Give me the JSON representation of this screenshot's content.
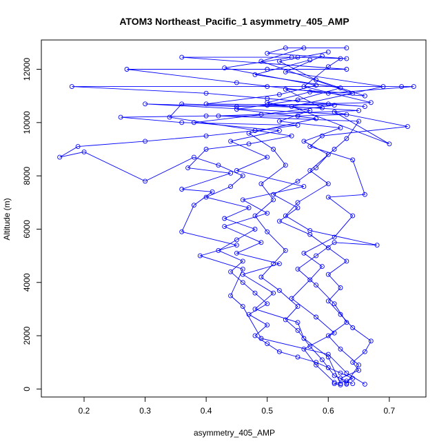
{
  "chart_data": {
    "type": "line",
    "title": "ATOM3 Northeast_Pacific_1 asymmetry_405_AMP",
    "xlabel": "asymmetry_405_AMP",
    "ylabel": "Altitude (m)",
    "xlim": [
      0.13,
      0.76
    ],
    "ylim": [
      -300,
      13100
    ],
    "xticks": [
      0.2,
      0.3,
      0.4,
      0.5,
      0.6,
      0.7
    ],
    "yticks": [
      0,
      2000,
      4000,
      6000,
      8000,
      10000,
      12000
    ],
    "grid": false,
    "legend": "none",
    "series": [
      {
        "color": "#0000ff",
        "marker": "open-circle",
        "points": [
          [
            0.62,
            150
          ],
          [
            0.61,
            200
          ],
          [
            0.63,
            300
          ],
          [
            0.64,
            400
          ],
          [
            0.62,
            600
          ],
          [
            0.6,
            800
          ],
          [
            0.58,
            1000
          ],
          [
            0.55,
            1200
          ],
          [
            0.52,
            1400
          ],
          [
            0.5,
            1700
          ],
          [
            0.48,
            2000
          ],
          [
            0.5,
            2400
          ],
          [
            0.47,
            2800
          ],
          [
            0.5,
            3200
          ],
          [
            0.48,
            3600
          ],
          [
            0.46,
            4000
          ],
          [
            0.44,
            4400
          ],
          [
            0.46,
            4800
          ],
          [
            0.42,
            5200
          ],
          [
            0.45,
            5600
          ],
          [
            0.48,
            6000
          ],
          [
            0.43,
            6400
          ],
          [
            0.47,
            6800
          ],
          [
            0.4,
            7200
          ],
          [
            0.44,
            7600
          ],
          [
            0.46,
            8000
          ],
          [
            0.42,
            8400
          ],
          [
            0.38,
            8700
          ],
          [
            0.3,
            7800
          ],
          [
            0.2,
            8900
          ],
          [
            0.16,
            8700
          ],
          [
            0.19,
            9100
          ],
          [
            0.3,
            9300
          ],
          [
            0.4,
            9500
          ],
          [
            0.48,
            9700
          ],
          [
            0.55,
            9900
          ],
          [
            0.36,
            10000
          ],
          [
            0.26,
            10200
          ],
          [
            0.4,
            10250
          ],
          [
            0.55,
            10250
          ],
          [
            0.63,
            10300
          ],
          [
            0.3,
            10700
          ],
          [
            0.45,
            10600
          ],
          [
            0.6,
            10700
          ],
          [
            0.66,
            10600
          ],
          [
            0.5,
            10900
          ],
          [
            0.4,
            11100
          ],
          [
            0.18,
            11350
          ],
          [
            0.5,
            11350
          ],
          [
            0.72,
            11350
          ],
          [
            0.74,
            11350
          ],
          [
            0.6,
            11100
          ],
          [
            0.45,
            11500
          ],
          [
            0.27,
            12000
          ],
          [
            0.5,
            12000
          ],
          [
            0.63,
            12000
          ],
          [
            0.36,
            12450
          ],
          [
            0.55,
            12450
          ],
          [
            0.63,
            12400
          ],
          [
            0.5,
            12600
          ],
          [
            0.53,
            12800
          ],
          [
            0.63,
            12800
          ]
        ]
      },
      {
        "color": "#0000ff",
        "marker": "open-circle",
        "points": [
          [
            0.63,
            180
          ],
          [
            0.62,
            400
          ],
          [
            0.65,
            700
          ],
          [
            0.64,
            1000
          ],
          [
            0.66,
            1400
          ],
          [
            0.67,
            1800
          ],
          [
            0.64,
            2300
          ],
          [
            0.62,
            2800
          ],
          [
            0.6,
            3300
          ],
          [
            0.62,
            3800
          ],
          [
            0.6,
            4300
          ],
          [
            0.63,
            4800
          ],
          [
            0.6,
            5300
          ],
          [
            0.57,
            5800
          ],
          [
            0.52,
            6300
          ],
          [
            0.55,
            6800
          ],
          [
            0.51,
            7300
          ],
          [
            0.55,
            7800
          ],
          [
            0.58,
            8300
          ],
          [
            0.6,
            8800
          ],
          [
            0.56,
            9300
          ],
          [
            0.62,
            9800
          ],
          [
            0.52,
            10050
          ],
          [
            0.57,
            10450
          ],
          [
            0.5,
            10750
          ],
          [
            0.57,
            11150
          ],
          [
            0.66,
            11000
          ],
          [
            0.58,
            11600
          ],
          [
            0.52,
            12300
          ],
          [
            0.6,
            12650
          ]
        ]
      },
      {
        "color": "#0000ff",
        "marker": "open-circle",
        "points": [
          [
            0.64,
            200
          ],
          [
            0.61,
            500
          ],
          [
            0.59,
            1100
          ],
          [
            0.57,
            1600
          ],
          [
            0.55,
            2200
          ],
          [
            0.53,
            2600
          ],
          [
            0.55,
            3100
          ],
          [
            0.52,
            3700
          ],
          [
            0.49,
            4200
          ],
          [
            0.51,
            4700
          ],
          [
            0.53,
            5200
          ],
          [
            0.5,
            5900
          ],
          [
            0.48,
            6500
          ],
          [
            0.51,
            7100
          ],
          [
            0.49,
            7700
          ],
          [
            0.53,
            8400
          ],
          [
            0.51,
            9000
          ],
          [
            0.47,
            9600
          ],
          [
            0.58,
            10150
          ],
          [
            0.45,
            10500
          ],
          [
            0.55,
            10850
          ],
          [
            0.62,
            11300
          ],
          [
            0.48,
            11800
          ],
          [
            0.57,
            12350
          ]
        ]
      },
      {
        "color": "#0000ff",
        "marker": "open-circle",
        "points": [
          [
            0.61,
            250
          ],
          [
            0.58,
            900
          ],
          [
            0.56,
            1500
          ],
          [
            0.61,
            2100
          ],
          [
            0.58,
            2700
          ],
          [
            0.54,
            3400
          ],
          [
            0.57,
            4100
          ],
          [
            0.59,
            4600
          ],
          [
            0.56,
            5100
          ],
          [
            0.61,
            5700
          ],
          [
            0.64,
            6500
          ],
          [
            0.6,
            7200
          ],
          [
            0.66,
            7300
          ],
          [
            0.64,
            8600
          ],
          [
            0.57,
            9100
          ],
          [
            0.59,
            9500
          ],
          [
            0.73,
            9850
          ],
          [
            0.61,
            10400
          ],
          [
            0.7,
            9200
          ],
          [
            0.54,
            10600
          ],
          [
            0.69,
            11350
          ],
          [
            0.53,
            11900
          ],
          [
            0.59,
            12500
          ]
        ]
      },
      {
        "color": "#0000ff",
        "marker": "open-circle",
        "points": [
          [
            0.66,
            180
          ],
          [
            0.63,
            600
          ],
          [
            0.6,
            1300
          ],
          [
            0.49,
            1900
          ],
          [
            0.46,
            3100
          ],
          [
            0.44,
            3500
          ],
          [
            0.46,
            4500
          ],
          [
            0.39,
            5000
          ],
          [
            0.45,
            5400
          ],
          [
            0.36,
            5900
          ],
          [
            0.38,
            6900
          ],
          [
            0.41,
            7400
          ],
          [
            0.36,
            7500
          ],
          [
            0.44,
            8100
          ],
          [
            0.37,
            8300
          ],
          [
            0.4,
            9000
          ],
          [
            0.47,
            9200
          ],
          [
            0.54,
            9500
          ],
          [
            0.34,
            10200
          ],
          [
            0.36,
            10700
          ],
          [
            0.59,
            10550
          ],
          [
            0.53,
            11250
          ],
          [
            0.64,
            11100
          ],
          [
            0.49,
            12300
          ],
          [
            0.56,
            12800
          ]
        ]
      },
      {
        "color": "#0000ff",
        "marker": "open-circle",
        "points": [
          [
            0.62,
            200
          ],
          [
            0.6,
            1200
          ],
          [
            0.56,
            1900
          ],
          [
            0.55,
            2500
          ],
          [
            0.48,
            3000
          ],
          [
            0.51,
            3600
          ],
          [
            0.46,
            4300
          ],
          [
            0.52,
            4700
          ],
          [
            0.45,
            5100
          ],
          [
            0.49,
            5500
          ],
          [
            0.43,
            6100
          ],
          [
            0.5,
            6600
          ],
          [
            0.46,
            7100
          ],
          [
            0.56,
            7600
          ],
          [
            0.45,
            8200
          ],
          [
            0.5,
            8700
          ],
          [
            0.44,
            9300
          ],
          [
            0.52,
            9700
          ],
          [
            0.38,
            10000
          ],
          [
            0.49,
            10300
          ],
          [
            0.61,
            10650
          ],
          [
            0.4,
            10700
          ],
          [
            0.52,
            11050
          ],
          [
            0.58,
            11400
          ],
          [
            0.43,
            12050
          ],
          [
            0.54,
            12450
          ]
        ]
      },
      {
        "color": "#0000ff",
        "marker": "open-circle",
        "points": [
          [
            0.63,
            220
          ],
          [
            0.65,
            900
          ],
          [
            0.62,
            1500
          ],
          [
            0.6,
            2000
          ],
          [
            0.63,
            2500
          ],
          [
            0.61,
            3200
          ],
          [
            0.58,
            3900
          ],
          [
            0.55,
            4500
          ],
          [
            0.58,
            5000
          ],
          [
            0.61,
            5500
          ],
          [
            0.68,
            5400
          ],
          [
            0.57,
            5950
          ],
          [
            0.53,
            6500
          ],
          [
            0.55,
            7000
          ],
          [
            0.6,
            7700
          ],
          [
            0.57,
            8200
          ],
          [
            0.61,
            9000
          ],
          [
            0.63,
            9400
          ],
          [
            0.65,
            10050
          ],
          [
            0.42,
            10250
          ],
          [
            0.65,
            10450
          ],
          [
            0.5,
            10650
          ],
          [
            0.67,
            10750
          ],
          [
            0.56,
            11350
          ],
          [
            0.6,
            12100
          ],
          [
            0.62,
            12400
          ]
        ]
      }
    ]
  }
}
